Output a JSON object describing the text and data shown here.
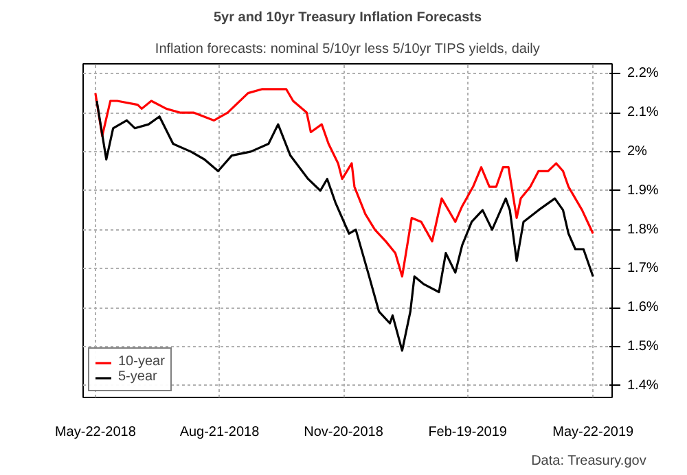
{
  "chart_data": {
    "type": "line",
    "title": "5yr and 10yr Treasury Inflation Forecasts",
    "subtitle": "Inflation forecasts: nominal 5/10yr less 5/10yr TIPS yields, daily",
    "series": [
      {
        "name": "10-year",
        "color": "#ff0000",
        "x": [
          "2018-05-22",
          "2018-05-27",
          "2018-06-02",
          "2018-06-07",
          "2018-06-22",
          "2018-06-25",
          "2018-07-02",
          "2018-07-13",
          "2018-07-23",
          "2018-08-02",
          "2018-08-17",
          "2018-08-27",
          "2018-09-11",
          "2018-09-21",
          "2018-10-01",
          "2018-10-09",
          "2018-10-14",
          "2018-10-24",
          "2018-10-27",
          "2018-11-04",
          "2018-11-09",
          "2018-11-16",
          "2018-11-19",
          "2018-11-26",
          "2018-11-28",
          "2018-12-06",
          "2018-12-13",
          "2018-12-21",
          "2018-12-28",
          "2019-01-02",
          "2019-01-09",
          "2019-01-16",
          "2019-01-24",
          "2019-01-31",
          "2019-02-10",
          "2019-02-15",
          "2019-02-23",
          "2019-03-01",
          "2019-03-07",
          "2019-03-12",
          "2019-03-17",
          "2019-03-21",
          "2019-03-27",
          "2019-03-30",
          "2019-04-06",
          "2019-04-12",
          "2019-04-19",
          "2019-04-25",
          "2019-04-30",
          "2019-05-04",
          "2019-05-09",
          "2019-05-14",
          "2019-05-18",
          "2019-05-22"
        ],
        "values": [
          2.15,
          2.04,
          2.13,
          2.13,
          2.12,
          2.11,
          2.13,
          2.11,
          2.1,
          2.1,
          2.08,
          2.1,
          2.15,
          2.16,
          2.16,
          2.16,
          2.13,
          2.1,
          2.05,
          2.07,
          2.02,
          1.97,
          1.93,
          1.97,
          1.91,
          1.84,
          1.8,
          1.77,
          1.74,
          1.68,
          1.83,
          1.82,
          1.77,
          1.88,
          1.82,
          1.86,
          1.91,
          1.96,
          1.91,
          1.91,
          1.96,
          1.96,
          1.83,
          1.88,
          1.91,
          1.95,
          1.95,
          1.97,
          1.95,
          1.91,
          1.88,
          1.85,
          1.82,
          1.79
        ]
      },
      {
        "name": "5-year",
        "color": "#000000",
        "x": [
          "2018-05-23",
          "2018-05-30",
          "2018-06-04",
          "2018-06-14",
          "2018-06-20",
          "2018-06-30",
          "2018-07-08",
          "2018-07-18",
          "2018-07-31",
          "2018-08-10",
          "2018-08-20",
          "2018-08-30",
          "2018-09-13",
          "2018-09-26",
          "2018-10-03",
          "2018-10-12",
          "2018-10-25",
          "2018-11-03",
          "2018-11-08",
          "2018-11-14",
          "2018-11-24",
          "2018-11-29",
          "2018-12-08",
          "2018-12-16",
          "2018-12-24",
          "2018-12-26",
          "2019-01-02",
          "2019-01-08",
          "2019-01-11",
          "2019-01-18",
          "2019-01-29",
          "2019-02-03",
          "2019-02-10",
          "2019-02-15",
          "2019-02-22",
          "2019-03-02",
          "2019-03-09",
          "2019-03-19",
          "2019-03-22",
          "2019-03-27",
          "2019-04-01",
          "2019-04-12",
          "2019-04-24",
          "2019-04-30",
          "2019-05-04",
          "2019-05-09",
          "2019-05-15",
          "2019-05-19",
          "2019-05-22"
        ],
        "values": [
          2.13,
          1.98,
          2.06,
          2.08,
          2.06,
          2.07,
          2.09,
          2.02,
          2.0,
          1.98,
          1.95,
          1.99,
          2.0,
          2.02,
          2.07,
          1.99,
          1.93,
          1.9,
          1.93,
          1.87,
          1.79,
          1.8,
          1.69,
          1.59,
          1.56,
          1.58,
          1.49,
          1.59,
          1.68,
          1.66,
          1.64,
          1.74,
          1.69,
          1.76,
          1.82,
          1.85,
          1.8,
          1.88,
          1.85,
          1.72,
          1.82,
          1.85,
          1.88,
          1.85,
          1.79,
          1.75,
          1.75,
          1.71,
          1.68
        ]
      }
    ],
    "xlim": [
      "2018-05-13",
      "2019-06-05"
    ],
    "xticks": [
      {
        "value": "2018-05-22",
        "label": "May-22-2018"
      },
      {
        "value": "2018-08-21",
        "label": "Aug-21-2018"
      },
      {
        "value": "2018-11-20",
        "label": "Nov-20-2018"
      },
      {
        "value": "2019-02-19",
        "label": "Feb-19-2019"
      },
      {
        "value": "2019-05-22",
        "label": "May-22-2019"
      }
    ],
    "ylim": [
      1.37,
      2.225
    ],
    "yticks": [
      {
        "value": 1.4,
        "label": "1.4%"
      },
      {
        "value": 1.5,
        "label": "1.5%"
      },
      {
        "value": 1.6,
        "label": "1.6%"
      },
      {
        "value": 1.7,
        "label": "1.7%"
      },
      {
        "value": 1.8,
        "label": "1.8%"
      },
      {
        "value": 1.9,
        "label": "1.9%"
      },
      {
        "value": 2.0,
        "label": "2%"
      },
      {
        "value": 2.1,
        "label": "2.1%"
      },
      {
        "value": 2.2,
        "label": "2.2%"
      }
    ],
    "grid": true,
    "legend": "bottom left",
    "line_style": "solid",
    "annotations": [
      "Data: Treasury.gov"
    ]
  }
}
